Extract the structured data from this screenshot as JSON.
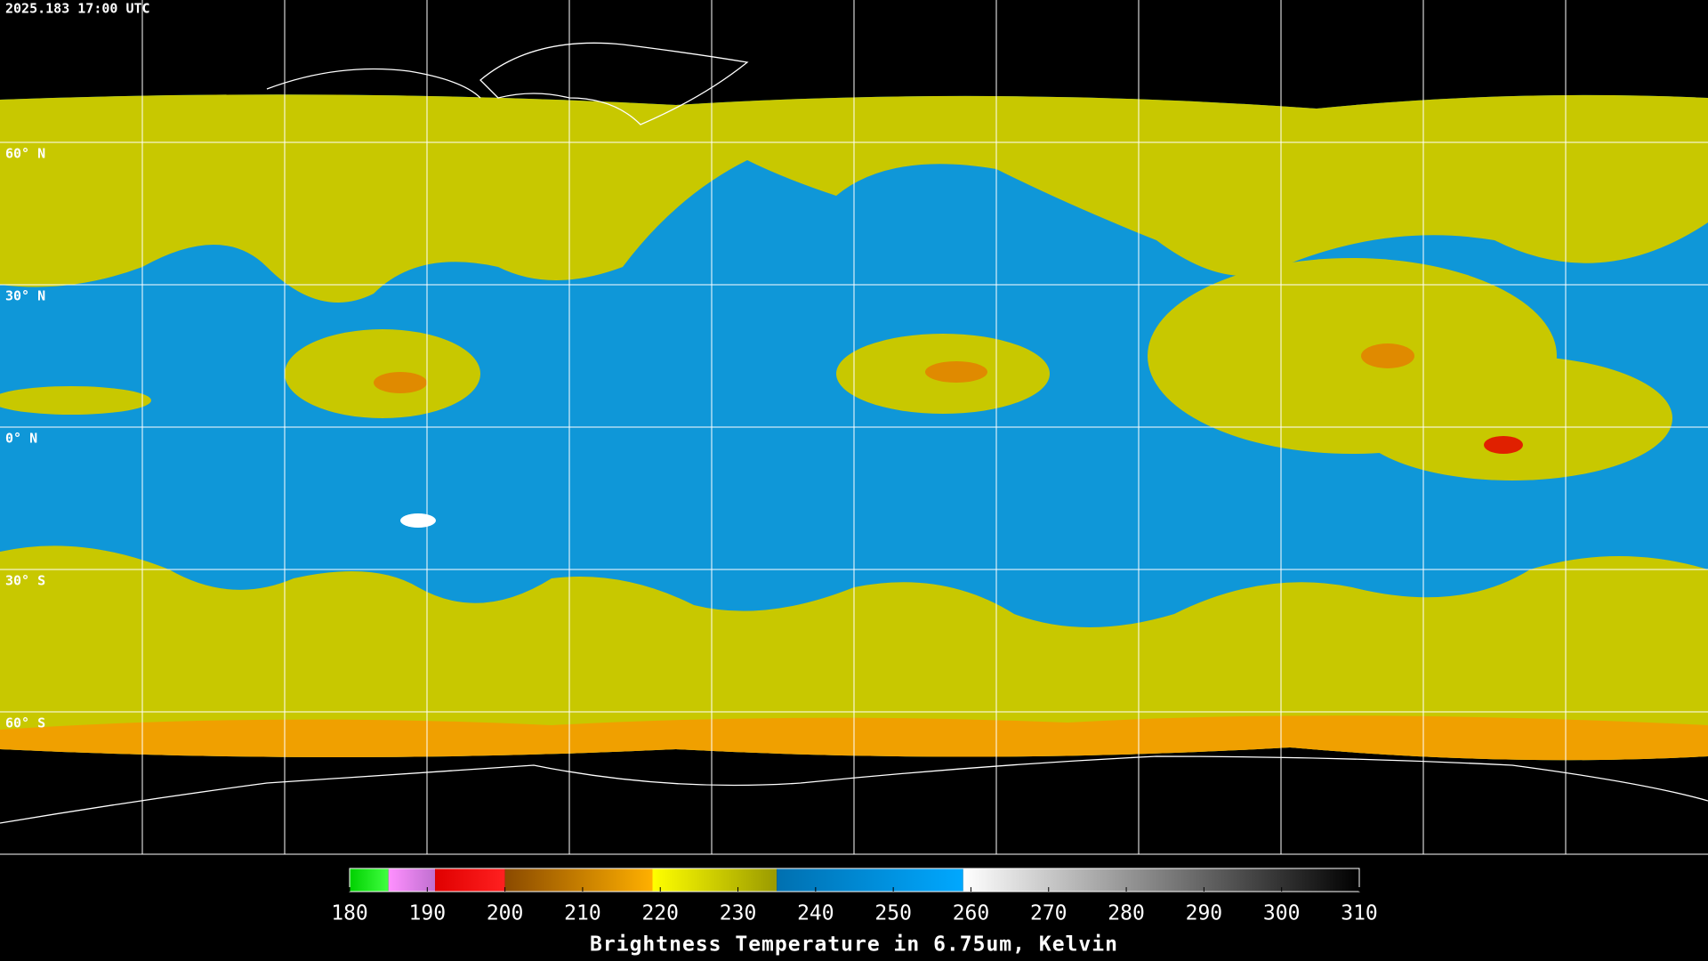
{
  "timestamp": "2025.183 17:00 UTC",
  "lat_labels": [
    "60° N",
    "30° N",
    "0° N",
    "30° S",
    "60° S"
  ],
  "colorbar": {
    "title": "Brightness Temperature in 6.75um, Kelvin",
    "range": [
      180,
      310
    ],
    "ticks": [
      180,
      190,
      200,
      210,
      220,
      230,
      240,
      250,
      260,
      270,
      280,
      290,
      300,
      310
    ],
    "segments": [
      {
        "from": 180,
        "to": 185,
        "colors": [
          "#00d000",
          "#40ff40"
        ]
      },
      {
        "from": 185,
        "to": 191,
        "colors": [
          "#ff90ff",
          "#c070d0"
        ]
      },
      {
        "from": 191,
        "to": 200,
        "colors": [
          "#e00000",
          "#ff2020"
        ]
      },
      {
        "from": 200,
        "to": 219,
        "colors": [
          "#8a4a00",
          "#ffb000"
        ]
      },
      {
        "from": 219,
        "to": 235,
        "colors": [
          "#ffff00",
          "#9a9a00"
        ]
      },
      {
        "from": 235,
        "to": 259,
        "colors": [
          "#0070b0",
          "#00a8ff"
        ]
      },
      {
        "from": 259,
        "to": 310,
        "colors": [
          "#ffffff",
          "#000000"
        ]
      }
    ]
  }
}
